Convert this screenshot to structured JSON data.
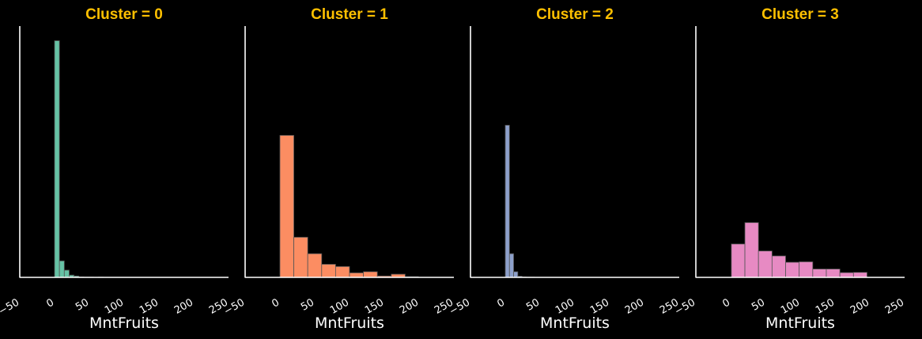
{
  "chart_data": [
    {
      "type": "bar",
      "title": "Cluster = 0",
      "xlabel": "MntFruits",
      "color": "#66c2a5",
      "xlim": [
        -50,
        250
      ],
      "xticks": [
        "−50",
        "0",
        "50",
        "100",
        "150",
        "200",
        "250"
      ],
      "bin_edges": [
        0,
        7,
        14,
        21,
        28,
        35,
        42,
        49,
        56,
        63,
        70
      ],
      "values": [
        1050,
        73,
        32,
        10,
        6,
        2,
        1,
        1,
        0,
        1
      ]
    },
    {
      "type": "bar",
      "title": "Cluster = 1",
      "xlabel": "MntFruits",
      "color": "#fc8d62",
      "xlim": [
        -50,
        250
      ],
      "xticks": [
        "−50",
        "0",
        "50",
        "100",
        "150",
        "200",
        "250"
      ],
      "bin_edges": [
        0,
        20,
        40,
        60,
        80,
        100,
        120,
        140,
        160,
        180,
        199
      ],
      "values": [
        630,
        178,
        105,
        58,
        48,
        20,
        25,
        6,
        14,
        3
      ]
    },
    {
      "type": "bar",
      "title": "Cluster = 2",
      "xlabel": "MntFruits",
      "color": "#8da0cb",
      "xlim": [
        -50,
        250
      ],
      "xticks": [
        "−50",
        "0",
        "50",
        "100",
        "150",
        "200",
        "250"
      ],
      "bin_edges": [
        0,
        6,
        12,
        18,
        24,
        30,
        36,
        42
      ],
      "values": [
        675,
        105,
        25,
        5,
        2,
        1,
        1
      ]
    },
    {
      "type": "bar",
      "title": "Cluster = 3",
      "xlabel": "MntFruits",
      "color": "#e78ac3",
      "xlim": [
        -50,
        250
      ],
      "xticks": [
        "−50",
        "0",
        "50",
        "100",
        "150",
        "200",
        "250"
      ],
      "bin_edges": [
        1,
        20.5,
        40,
        59.5,
        79,
        98.5,
        118,
        137.5,
        157,
        176.5,
        196
      ],
      "values": [
        148,
        243,
        117,
        95,
        67,
        69,
        37,
        37,
        21,
        22
      ]
    }
  ]
}
